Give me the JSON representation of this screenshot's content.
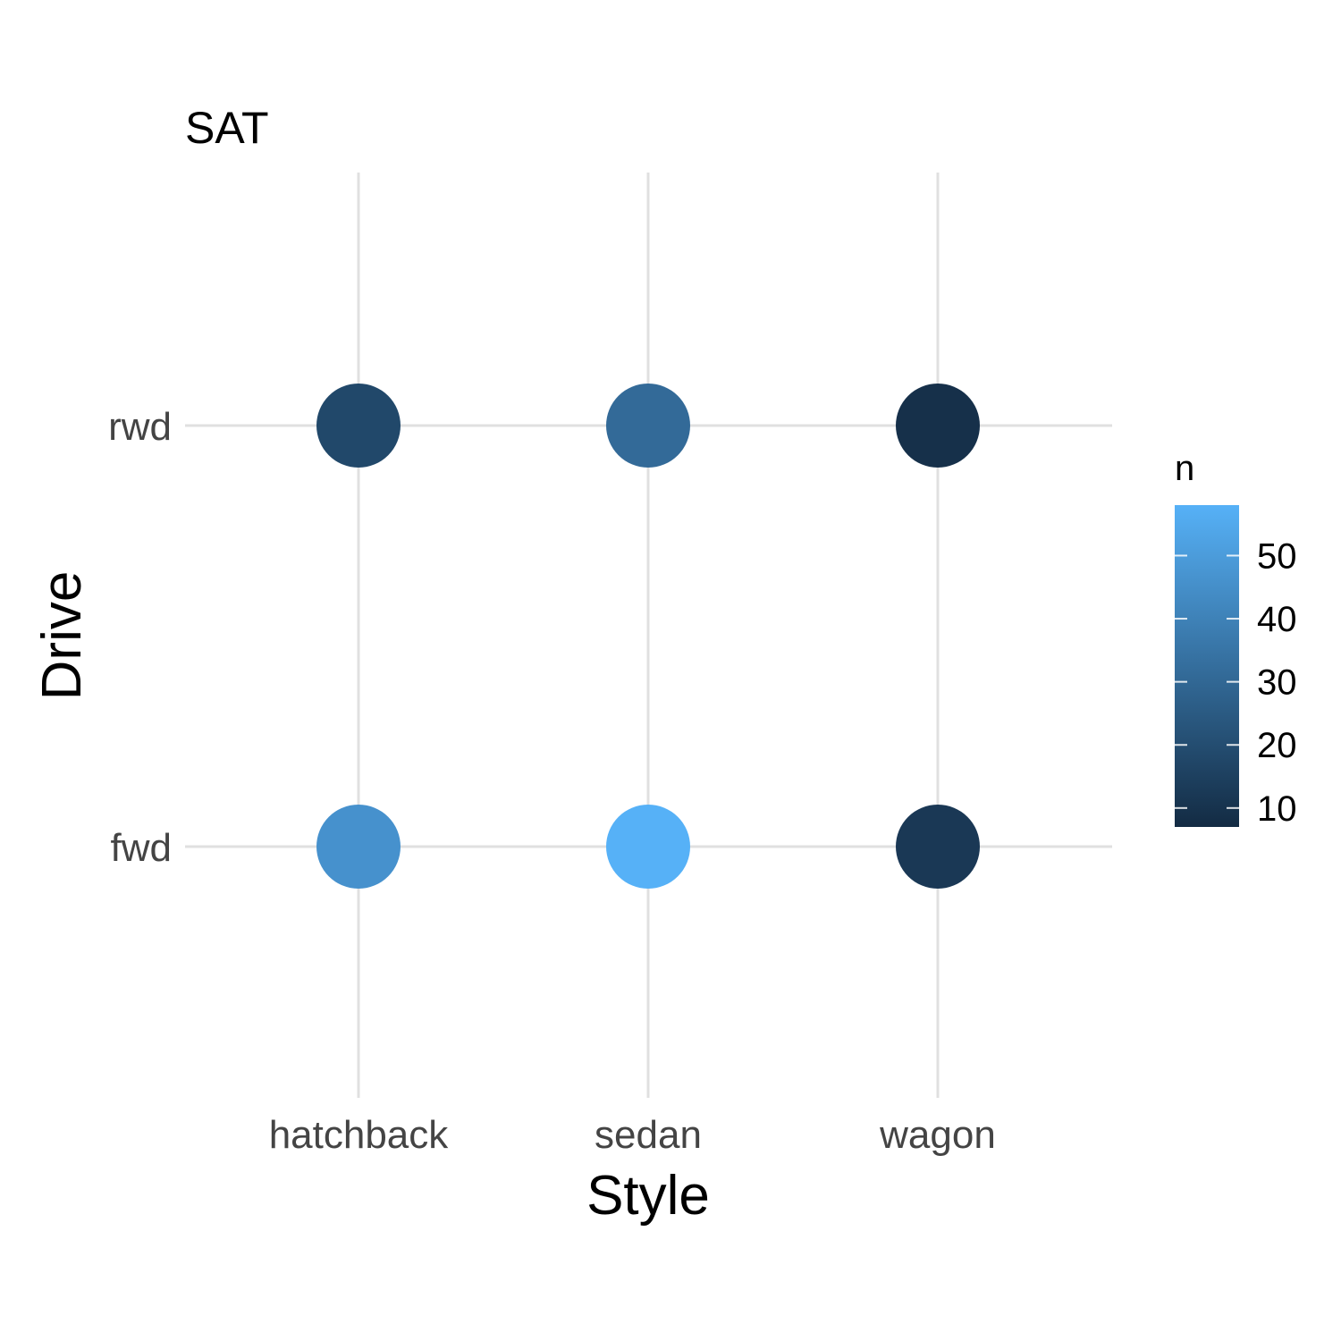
{
  "chart_data": {
    "type": "scatter",
    "title": "SAT",
    "xlabel": "Style",
    "ylabel": "Drive",
    "x_categories": [
      "hatchback",
      "sedan",
      "wagon"
    ],
    "y_categories": [
      "fwd",
      "rwd"
    ],
    "points": [
      {
        "x": "hatchback",
        "y": "rwd",
        "n": 18
      },
      {
        "x": "sedan",
        "y": "rwd",
        "n": 31
      },
      {
        "x": "wagon",
        "y": "rwd",
        "n": 9
      },
      {
        "x": "hatchback",
        "y": "fwd",
        "n": 46
      },
      {
        "x": "sedan",
        "y": "fwd",
        "n": 58
      },
      {
        "x": "wagon",
        "y": "fwd",
        "n": 12
      }
    ],
    "legend": {
      "title": "n",
      "type": "colorbar",
      "placement": "right",
      "ticks": [
        10,
        20,
        30,
        40,
        50
      ],
      "range": [
        7,
        58
      ],
      "low_color": "#132B43",
      "high_color": "#56B1F7"
    },
    "grid": true
  }
}
